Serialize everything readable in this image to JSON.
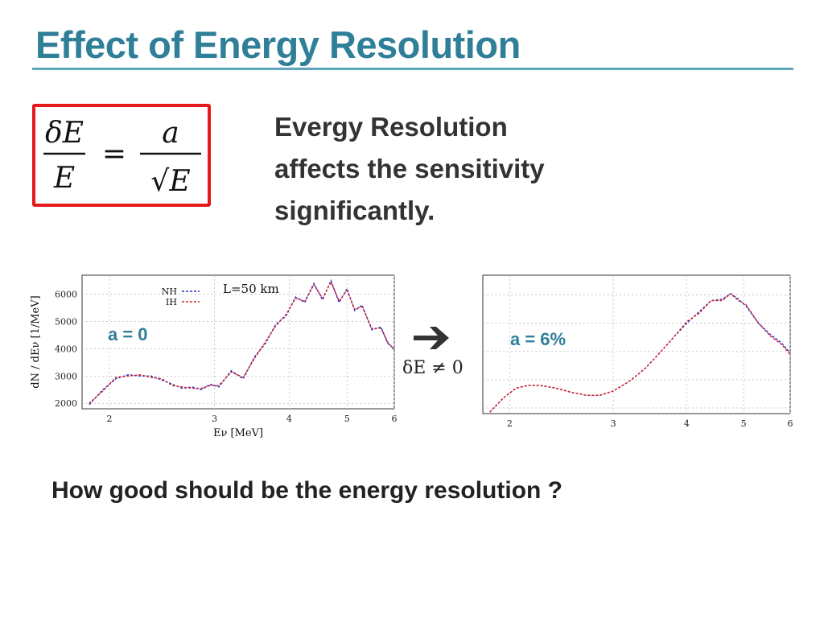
{
  "slide": {
    "title": "Effect of Energy Resolution",
    "formula": {
      "lhs_num": "δE",
      "lhs_den": "E",
      "equals": "=",
      "rhs_num": "a",
      "rhs_den": "√E"
    },
    "statement": [
      "Evergy Resolution",
      "affects the sensitivity",
      "significantly."
    ],
    "delta_condition": "δE ≠ 0",
    "question": "How good should be the energy resolution ?",
    "colors": {
      "title": "#2f7f99",
      "box": "#e3191b",
      "nh": "#1f2fd6",
      "ih": "#d42020"
    }
  },
  "chart_data": [
    {
      "type": "line",
      "annotation": "a = 0",
      "title": "L=50 km",
      "xlabel": "Eν [MeV]",
      "ylabel": "dN / dEν [1/MeV]",
      "x_scale": "log",
      "xlim": [
        1.8,
        6.0
      ],
      "ylim": [
        1800,
        6700
      ],
      "xticks": [
        2,
        3,
        4,
        5,
        6
      ],
      "yticks": [
        2000,
        3000,
        4000,
        5000,
        6000
      ],
      "grid": true,
      "legend": "top-center",
      "series": [
        {
          "name": "NH",
          "style": "dashed",
          "color": "#1f2fd6",
          "x": [
            1.85,
            1.95,
            2.05,
            2.15,
            2.25,
            2.35,
            2.45,
            2.55,
            2.65,
            2.75,
            2.85,
            2.95,
            3.05,
            3.2,
            3.35,
            3.5,
            3.65,
            3.8,
            3.95,
            4.1,
            4.25,
            4.4,
            4.55,
            4.7,
            4.85,
            5.0,
            5.15,
            5.3,
            5.5,
            5.7,
            5.85,
            6.0
          ],
          "y": [
            1950,
            2500,
            2900,
            3050,
            3000,
            3000,
            2850,
            2700,
            2550,
            2600,
            2500,
            2700,
            2600,
            3200,
            2900,
            3700,
            4200,
            4900,
            5200,
            5900,
            5700,
            6400,
            5800,
            6500,
            5700,
            6200,
            5400,
            5600,
            4700,
            4800,
            4200,
            4000
          ]
        },
        {
          "name": "IH",
          "style": "dashed",
          "color": "#d42020",
          "x": [
            1.85,
            1.95,
            2.05,
            2.15,
            2.25,
            2.35,
            2.45,
            2.55,
            2.65,
            2.75,
            2.85,
            2.95,
            3.05,
            3.2,
            3.35,
            3.5,
            3.65,
            3.8,
            3.95,
            4.1,
            4.25,
            4.4,
            4.55,
            4.7,
            4.85,
            5.0,
            5.15,
            5.3,
            5.5,
            5.7,
            5.85,
            6.0
          ],
          "y": [
            2000,
            2450,
            2950,
            3000,
            3050,
            2950,
            2900,
            2650,
            2600,
            2550,
            2550,
            2650,
            2650,
            3150,
            2950,
            3650,
            4250,
            4850,
            5250,
            5850,
            5750,
            6350,
            5850,
            6450,
            5750,
            6150,
            5450,
            5550,
            4750,
            4750,
            4250,
            3950
          ]
        }
      ]
    },
    {
      "type": "line",
      "annotation": "a = 6%",
      "title": "",
      "xlabel": "",
      "ylabel": "",
      "x_scale": "log",
      "xlim": [
        1.8,
        6.0
      ],
      "ylim": [
        1800,
        6700
      ],
      "xticks": [
        2,
        3,
        4,
        5,
        6
      ],
      "yticks": [],
      "grid": true,
      "series": [
        {
          "name": "",
          "style": "dashed",
          "color": "#1f2fd6",
          "x": [
            1.85,
            1.95,
            2.05,
            2.15,
            2.25,
            2.4,
            2.55,
            2.7,
            2.85,
            3.0,
            3.2,
            3.4,
            3.6,
            3.8,
            4.0,
            4.2,
            4.4,
            4.6,
            4.75,
            4.9,
            5.05,
            5.3,
            5.55,
            5.8,
            6.0
          ],
          "y": [
            1850,
            2350,
            2700,
            2800,
            2800,
            2700,
            2550,
            2450,
            2450,
            2600,
            2950,
            3400,
            3950,
            4500,
            5000,
            5400,
            5800,
            5850,
            6050,
            5850,
            5600,
            5000,
            4600,
            4300,
            3950
          ]
        },
        {
          "name": "",
          "style": "dashed",
          "color": "#d42020",
          "x": [
            1.85,
            1.95,
            2.05,
            2.15,
            2.25,
            2.4,
            2.55,
            2.7,
            2.85,
            3.0,
            3.2,
            3.4,
            3.6,
            3.8,
            4.0,
            4.2,
            4.4,
            4.6,
            4.75,
            4.9,
            5.05,
            5.3,
            5.55,
            5.8,
            6.0
          ],
          "y": [
            1850,
            2350,
            2700,
            2800,
            2800,
            2700,
            2550,
            2450,
            2450,
            2600,
            2950,
            3400,
            3950,
            4500,
            5050,
            5350,
            5800,
            5800,
            6050,
            5800,
            5650,
            5000,
            4550,
            4250,
            3900
          ]
        }
      ]
    }
  ]
}
